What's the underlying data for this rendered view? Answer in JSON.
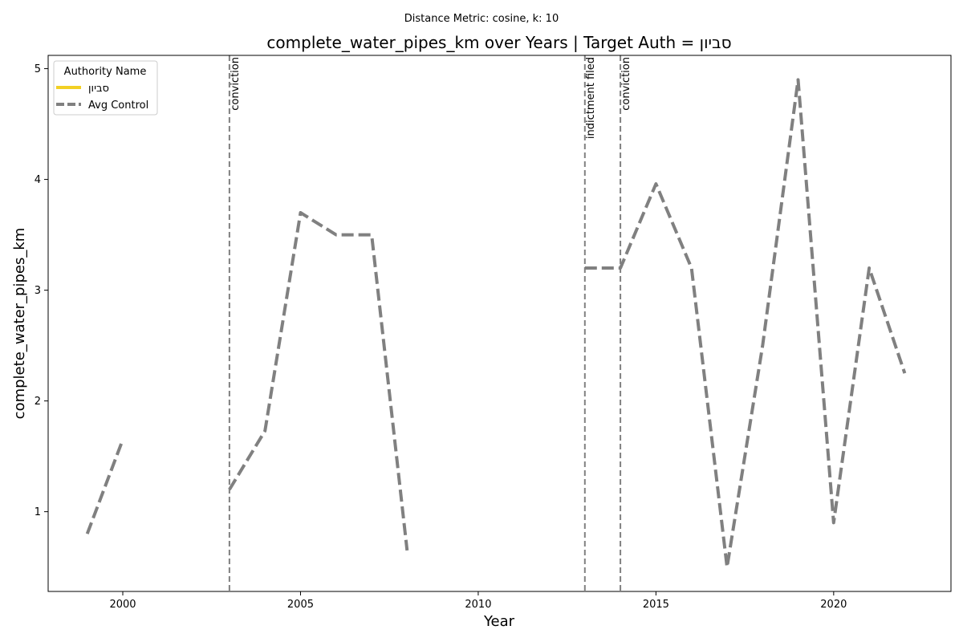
{
  "chart_data": {
    "type": "line",
    "suptitle": "Distance Metric: cosine, k: 10",
    "title": "complete_water_pipes_km over Years | Target Auth = סביון",
    "xlabel": "Year",
    "ylabel": "complete_water_pipes_km",
    "xlim": [
      1997.9,
      2023.3
    ],
    "ylim": [
      0.28,
      5.12
    ],
    "xticks": [
      2000,
      2005,
      2010,
      2015,
      2020
    ],
    "yticks": [
      1,
      2,
      3,
      4,
      5
    ],
    "grid": false,
    "legend": {
      "title": "Authority Name",
      "placement": "top-left",
      "entries": [
        {
          "label": "סביון",
          "color": "#f2d024",
          "style": "solid"
        },
        {
          "label": "Avg Control",
          "color": "#808080",
          "style": "dashed"
        }
      ]
    },
    "series": [
      {
        "name": "Avg Control",
        "color": "#808080",
        "style": "dashed",
        "segments": [
          {
            "x": [
              1999,
              2000
            ],
            "y": [
              0.8,
              1.65
            ]
          },
          {
            "x": [
              2003,
              2004,
              2005,
              2006,
              2007,
              2008
            ],
            "y": [
              1.2,
              1.73,
              3.7,
              3.5,
              3.5,
              0.65
            ]
          },
          {
            "x": [
              2013,
              2014,
              2015,
              2016,
              2017,
              2018,
              2019,
              2020,
              2021,
              2022
            ],
            "y": [
              3.2,
              3.2,
              3.96,
              3.2,
              0.5,
              2.5,
              4.9,
              0.9,
              3.2,
              2.25
            ]
          }
        ]
      },
      {
        "name": "סביון",
        "color": "#f2d024",
        "style": "solid",
        "segments": []
      }
    ],
    "events": [
      {
        "x": 2003,
        "label": "conviction"
      },
      {
        "x": 2013,
        "label": "indictment filed"
      },
      {
        "x": 2014,
        "label": "conviction"
      }
    ]
  }
}
